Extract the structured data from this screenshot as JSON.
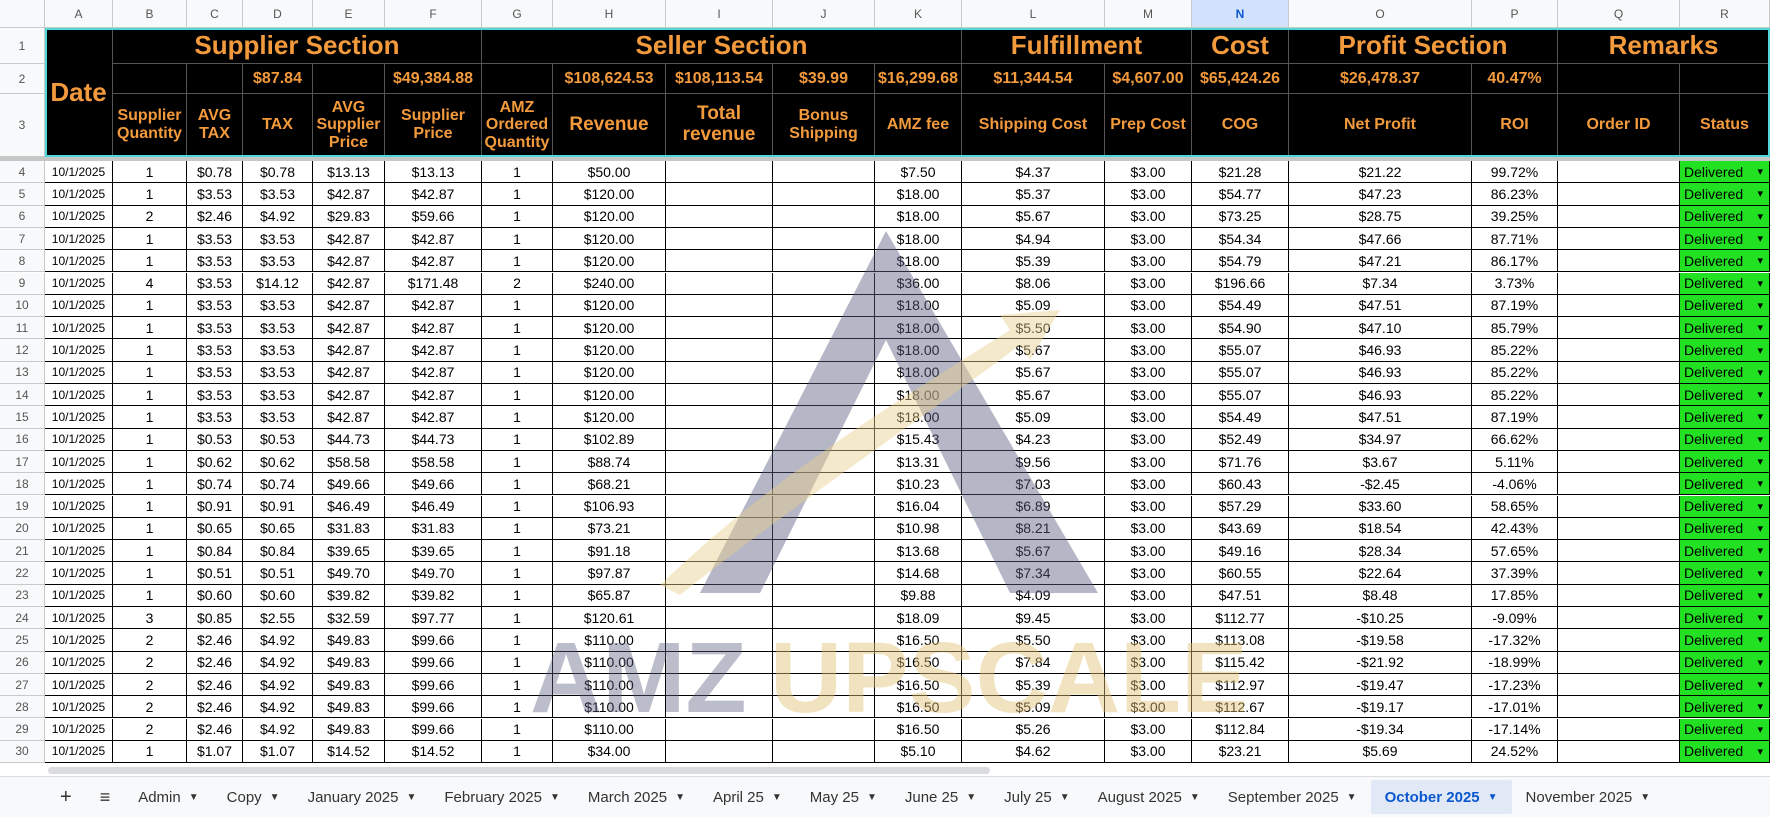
{
  "column_letters": [
    "A",
    "B",
    "C",
    "D",
    "E",
    "F",
    "G",
    "H",
    "I",
    "J",
    "K",
    "L",
    "M",
    "N",
    "O",
    "P",
    "Q",
    "R"
  ],
  "row_numbers": [
    1,
    2,
    3,
    4,
    5,
    6,
    7,
    8,
    9,
    10,
    11,
    12,
    13,
    14,
    15,
    16,
    17,
    18,
    19,
    20,
    21,
    22,
    23,
    24,
    25,
    26,
    27,
    28,
    29,
    30
  ],
  "header": {
    "date": "Date",
    "sections": [
      "Supplier Section",
      "Seller Section",
      "Fulfillment",
      "Cost",
      "Profit Section",
      "Remarks"
    ],
    "totals": [
      "$87.84",
      "$49,384.88",
      "$108,624.53",
      "$108,113.54",
      "$39.99",
      "$16,299.68",
      "$11,344.54",
      "$4,607.00",
      "$65,424.26",
      "$26,478.37",
      "40.47%"
    ],
    "labels": [
      "Supplier Quantity",
      "AVG TAX",
      "TAX",
      "AVG Supplier Price",
      "Supplier Price",
      "AMZ Ordered Quantity",
      "Revenue",
      "Total revenue",
      "Bonus Shipping",
      "AMZ fee",
      "Shipping Cost",
      "Prep Cost",
      "COG",
      "Net Profit",
      "ROI",
      "Order ID",
      "Status"
    ]
  },
  "rows": [
    [
      "10/1/2025",
      1,
      "$0.78",
      "$0.78",
      "$13.13",
      "$13.13",
      1,
      "$50.00",
      "$7.50",
      "$4.37",
      "$3.00",
      "$21.28",
      "$21.22",
      "99.72%",
      "Delivered"
    ],
    [
      "10/1/2025",
      1,
      "$3.53",
      "$3.53",
      "$42.87",
      "$42.87",
      1,
      "$120.00",
      "$18.00",
      "$5.37",
      "$3.00",
      "$54.77",
      "$47.23",
      "86.23%",
      "Delivered"
    ],
    [
      "10/1/2025",
      2,
      "$2.46",
      "$4.92",
      "$29.83",
      "$59.66",
      1,
      "$120.00",
      "$18.00",
      "$5.67",
      "$3.00",
      "$73.25",
      "$28.75",
      "39.25%",
      "Delivered"
    ],
    [
      "10/1/2025",
      1,
      "$3.53",
      "$3.53",
      "$42.87",
      "$42.87",
      1,
      "$120.00",
      "$18.00",
      "$4.94",
      "$3.00",
      "$54.34",
      "$47.66",
      "87.71%",
      "Delivered"
    ],
    [
      "10/1/2025",
      1,
      "$3.53",
      "$3.53",
      "$42.87",
      "$42.87",
      1,
      "$120.00",
      "$18.00",
      "$5.39",
      "$3.00",
      "$54.79",
      "$47.21",
      "86.17%",
      "Delivered"
    ],
    [
      "10/1/2025",
      4,
      "$3.53",
      "$14.12",
      "$42.87",
      "$171.48",
      2,
      "$240.00",
      "$36.00",
      "$8.06",
      "$3.00",
      "$196.66",
      "$7.34",
      "3.73%",
      "Delivered"
    ],
    [
      "10/1/2025",
      1,
      "$3.53",
      "$3.53",
      "$42.87",
      "$42.87",
      1,
      "$120.00",
      "$18.00",
      "$5.09",
      "$3.00",
      "$54.49",
      "$47.51",
      "87.19%",
      "Delivered"
    ],
    [
      "10/1/2025",
      1,
      "$3.53",
      "$3.53",
      "$42.87",
      "$42.87",
      1,
      "$120.00",
      "$18.00",
      "$5.50",
      "$3.00",
      "$54.90",
      "$47.10",
      "85.79%",
      "Delivered"
    ],
    [
      "10/1/2025",
      1,
      "$3.53",
      "$3.53",
      "$42.87",
      "$42.87",
      1,
      "$120.00",
      "$18.00",
      "$5.67",
      "$3.00",
      "$55.07",
      "$46.93",
      "85.22%",
      "Delivered"
    ],
    [
      "10/1/2025",
      1,
      "$3.53",
      "$3.53",
      "$42.87",
      "$42.87",
      1,
      "$120.00",
      "$18.00",
      "$5.67",
      "$3.00",
      "$55.07",
      "$46.93",
      "85.22%",
      "Delivered"
    ],
    [
      "10/1/2025",
      1,
      "$3.53",
      "$3.53",
      "$42.87",
      "$42.87",
      1,
      "$120.00",
      "$18.00",
      "$5.67",
      "$3.00",
      "$55.07",
      "$46.93",
      "85.22%",
      "Delivered"
    ],
    [
      "10/1/2025",
      1,
      "$3.53",
      "$3.53",
      "$42.87",
      "$42.87",
      1,
      "$120.00",
      "$18.00",
      "$5.09",
      "$3.00",
      "$54.49",
      "$47.51",
      "87.19%",
      "Delivered"
    ],
    [
      "10/1/2025",
      1,
      "$0.53",
      "$0.53",
      "$44.73",
      "$44.73",
      1,
      "$102.89",
      "$15.43",
      "$4.23",
      "$3.00",
      "$52.49",
      "$34.97",
      "66.62%",
      "Delivered"
    ],
    [
      "10/1/2025",
      1,
      "$0.62",
      "$0.62",
      "$58.58",
      "$58.58",
      1,
      "$88.74",
      "$13.31",
      "$9.56",
      "$3.00",
      "$71.76",
      "$3.67",
      "5.11%",
      "Delivered"
    ],
    [
      "10/1/2025",
      1,
      "$0.74",
      "$0.74",
      "$49.66",
      "$49.66",
      1,
      "$68.21",
      "$10.23",
      "$7.03",
      "$3.00",
      "$60.43",
      "-$2.45",
      "-4.06%",
      "Delivered"
    ],
    [
      "10/1/2025",
      1,
      "$0.91",
      "$0.91",
      "$46.49",
      "$46.49",
      1,
      "$106.93",
      "$16.04",
      "$6.89",
      "$3.00",
      "$57.29",
      "$33.60",
      "58.65%",
      "Delivered"
    ],
    [
      "10/1/2025",
      1,
      "$0.65",
      "$0.65",
      "$31.83",
      "$31.83",
      1,
      "$73.21",
      "$10.98",
      "$8.21",
      "$3.00",
      "$43.69",
      "$18.54",
      "42.43%",
      "Delivered"
    ],
    [
      "10/1/2025",
      1,
      "$0.84",
      "$0.84",
      "$39.65",
      "$39.65",
      1,
      "$91.18",
      "$13.68",
      "$5.67",
      "$3.00",
      "$49.16",
      "$28.34",
      "57.65%",
      "Delivered"
    ],
    [
      "10/1/2025",
      1,
      "$0.51",
      "$0.51",
      "$49.70",
      "$49.70",
      1,
      "$97.87",
      "$14.68",
      "$7.34",
      "$3.00",
      "$60.55",
      "$22.64",
      "37.39%",
      "Delivered"
    ],
    [
      "10/1/2025",
      1,
      "$0.60",
      "$0.60",
      "$39.82",
      "$39.82",
      1,
      "$65.87",
      "$9.88",
      "$4.09",
      "$3.00",
      "$47.51",
      "$8.48",
      "17.85%",
      "Delivered"
    ],
    [
      "10/1/2025",
      3,
      "$0.85",
      "$2.55",
      "$32.59",
      "$97.77",
      1,
      "$120.61",
      "$18.09",
      "$9.45",
      "$3.00",
      "$112.77",
      "-$10.25",
      "-9.09%",
      "Delivered"
    ],
    [
      "10/1/2025",
      2,
      "$2.46",
      "$4.92",
      "$49.83",
      "$99.66",
      1,
      "$110.00",
      "$16.50",
      "$5.50",
      "$3.00",
      "$113.08",
      "-$19.58",
      "-17.32%",
      "Delivered"
    ],
    [
      "10/1/2025",
      2,
      "$2.46",
      "$4.92",
      "$49.83",
      "$99.66",
      1,
      "$110.00",
      "$16.50",
      "$7.84",
      "$3.00",
      "$115.42",
      "-$21.92",
      "-18.99%",
      "Delivered"
    ],
    [
      "10/1/2025",
      2,
      "$2.46",
      "$4.92",
      "$49.83",
      "$99.66",
      1,
      "$110.00",
      "$16.50",
      "$5.39",
      "$3.00",
      "$112.97",
      "-$19.47",
      "-17.23%",
      "Delivered"
    ],
    [
      "10/1/2025",
      2,
      "$2.46",
      "$4.92",
      "$49.83",
      "$99.66",
      1,
      "$110.00",
      "$16.50",
      "$5.09",
      "$3.00",
      "$112.67",
      "-$19.17",
      "-17.01%",
      "Delivered"
    ],
    [
      "10/1/2025",
      2,
      "$2.46",
      "$4.92",
      "$49.83",
      "$99.66",
      1,
      "$110.00",
      "$16.50",
      "$5.26",
      "$3.00",
      "$112.84",
      "-$19.34",
      "-17.14%",
      "Delivered"
    ],
    [
      "10/1/2025",
      1,
      "$1.07",
      "$1.07",
      "$14.52",
      "$14.52",
      1,
      "$34.00",
      "$5.10",
      "$4.62",
      "$3.00",
      "$23.21",
      "$5.69",
      "24.52%",
      "Delivered"
    ]
  ],
  "logo_text": [
    "AMZ",
    "UPSCALE"
  ],
  "tabs": [
    "Admin",
    "Copy",
    "January 2025",
    "February 2025",
    "March 2025",
    "April 25",
    "May 25",
    "June 25",
    "July 25",
    "August 2025",
    "September 2025",
    "October 2025",
    "November 2025"
  ],
  "active_tab": "October 2025"
}
